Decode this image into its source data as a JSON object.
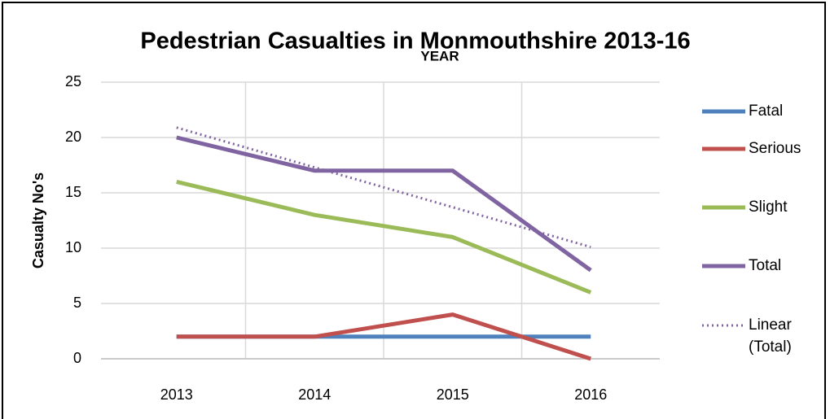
{
  "chart_data": {
    "type": "line",
    "title": "Pedestrian Casualties in Monmouthshire 2013-16",
    "x_label": "YEAR",
    "y_label": "Casualty No's",
    "categories": [
      "2013",
      "2014",
      "2015",
      "2016"
    ],
    "series": [
      {
        "name": "Fatal",
        "color": "#4f81bd",
        "values": [
          2,
          2,
          2,
          2
        ]
      },
      {
        "name": "Serious",
        "color": "#c0504d",
        "values": [
          2,
          2,
          4,
          0
        ]
      },
      {
        "name": "Slight",
        "color": "#9bbb59",
        "values": [
          16,
          13,
          11,
          6
        ]
      },
      {
        "name": "Total",
        "color": "#8064a2",
        "values": [
          20,
          17,
          17,
          8
        ]
      },
      {
        "name": "Linear (Total)",
        "color": "#8064a2",
        "dashed": true,
        "values": [
          20.9,
          17.3,
          13.7,
          10.1
        ]
      }
    ],
    "ylim": [
      0,
      25
    ],
    "yticks": [
      0,
      5,
      10,
      15,
      20,
      25
    ],
    "grid": true,
    "legend": "right"
  }
}
